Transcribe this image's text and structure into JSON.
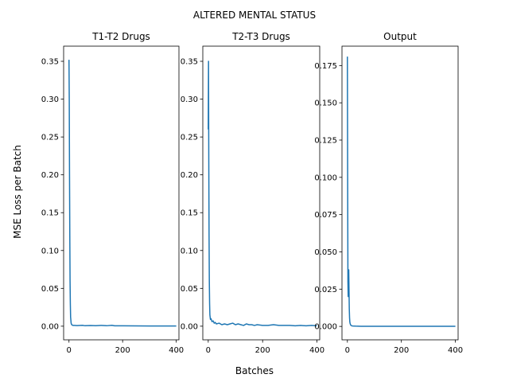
{
  "chart_data": {
    "type": "line",
    "suptitle": "ALTERED MENTAL STATUS",
    "supxlabel": "Batches",
    "supylabel": "MSE Loss per Batch",
    "colors": {
      "series": "#1f77b4",
      "axes": "#000000",
      "background": "#ffffff"
    },
    "grid": false,
    "subplots": [
      {
        "title": "T1-T2 Drugs",
        "xlim": [
          -20,
          410
        ],
        "ylim": [
          -0.018,
          0.37
        ],
        "xticks": [
          0,
          200,
          400
        ],
        "xtick_labels": [
          "0",
          "200",
          "400"
        ],
        "yticks": [
          0.0,
          0.05,
          0.1,
          0.15,
          0.2,
          0.25,
          0.3,
          0.35
        ],
        "ytick_labels": [
          "0.00",
          "0.05",
          "0.10",
          "0.15",
          "0.20",
          "0.25",
          "0.30",
          "0.35"
        ],
        "x": [
          0,
          1,
          2,
          3,
          4,
          5,
          6,
          8,
          10,
          15,
          20,
          30,
          50,
          60,
          80,
          100,
          120,
          140,
          160,
          170,
          200,
          250,
          300,
          350,
          400
        ],
        "y": [
          0.352,
          0.3,
          0.2,
          0.12,
          0.06,
          0.03,
          0.012,
          0.004,
          0.002,
          0.001,
          0.001,
          0.0008,
          0.0012,
          0.0006,
          0.0009,
          0.0007,
          0.0011,
          0.0006,
          0.0012,
          0.0005,
          0.0005,
          0.0004,
          0.0003,
          0.0003,
          0.0003
        ]
      },
      {
        "title": "T2-T3 Drugs",
        "xlim": [
          -20,
          410
        ],
        "ylim": [
          -0.018,
          0.37
        ],
        "xticks": [
          0,
          200,
          400
        ],
        "xtick_labels": [
          "0",
          "200",
          "400"
        ],
        "yticks": [
          0.0,
          0.05,
          0.1,
          0.15,
          0.2,
          0.25,
          0.3,
          0.35
        ],
        "ytick_labels": [
          "0.00",
          "0.05",
          "0.10",
          "0.15",
          "0.20",
          "0.25",
          "0.30",
          "0.35"
        ],
        "x": [
          0,
          1,
          2,
          3,
          4,
          5,
          6,
          8,
          10,
          14,
          18,
          22,
          26,
          30,
          40,
          50,
          60,
          70,
          80,
          90,
          100,
          110,
          120,
          130,
          140,
          150,
          160,
          170,
          180,
          200,
          220,
          240,
          260,
          280,
          300,
          320,
          340,
          360,
          380,
          400
        ],
        "y": [
          0.26,
          0.35,
          0.22,
          0.12,
          0.06,
          0.03,
          0.015,
          0.009,
          0.01,
          0.006,
          0.007,
          0.004,
          0.005,
          0.003,
          0.004,
          0.002,
          0.003,
          0.002,
          0.003,
          0.004,
          0.002,
          0.003,
          0.002,
          0.001,
          0.003,
          0.002,
          0.002,
          0.001,
          0.002,
          0.001,
          0.001,
          0.002,
          0.001,
          0.001,
          0.001,
          0.0005,
          0.001,
          0.0005,
          0.001,
          0.0005
        ]
      },
      {
        "title": "Output",
        "xlim": [
          -20,
          410
        ],
        "ylim": [
          -0.009,
          0.188
        ],
        "xticks": [
          0,
          200,
          400
        ],
        "xtick_labels": [
          "0",
          "200",
          "400"
        ],
        "yticks": [
          0.0,
          0.025,
          0.05,
          0.075,
          0.1,
          0.125,
          0.15,
          0.175
        ],
        "ytick_labels": [
          "0.000",
          "0.025",
          "0.050",
          "0.075",
          "0.100",
          "0.125",
          "0.150",
          "0.175"
        ],
        "x": [
          0,
          1,
          2,
          3,
          4,
          5,
          6,
          7,
          8,
          9,
          10,
          11,
          12,
          14,
          16,
          20,
          30,
          50,
          100,
          200,
          300,
          400
        ],
        "y": [
          0.181,
          0.1,
          0.03,
          0.02,
          0.033,
          0.038,
          0.025,
          0.012,
          0.006,
          0.003,
          0.002,
          0.0015,
          0.001,
          0.0006,
          0.0004,
          0.0003,
          0.0002,
          0.0001,
          0.0001,
          0.0001,
          0.0001,
          0.0001
        ]
      }
    ]
  }
}
